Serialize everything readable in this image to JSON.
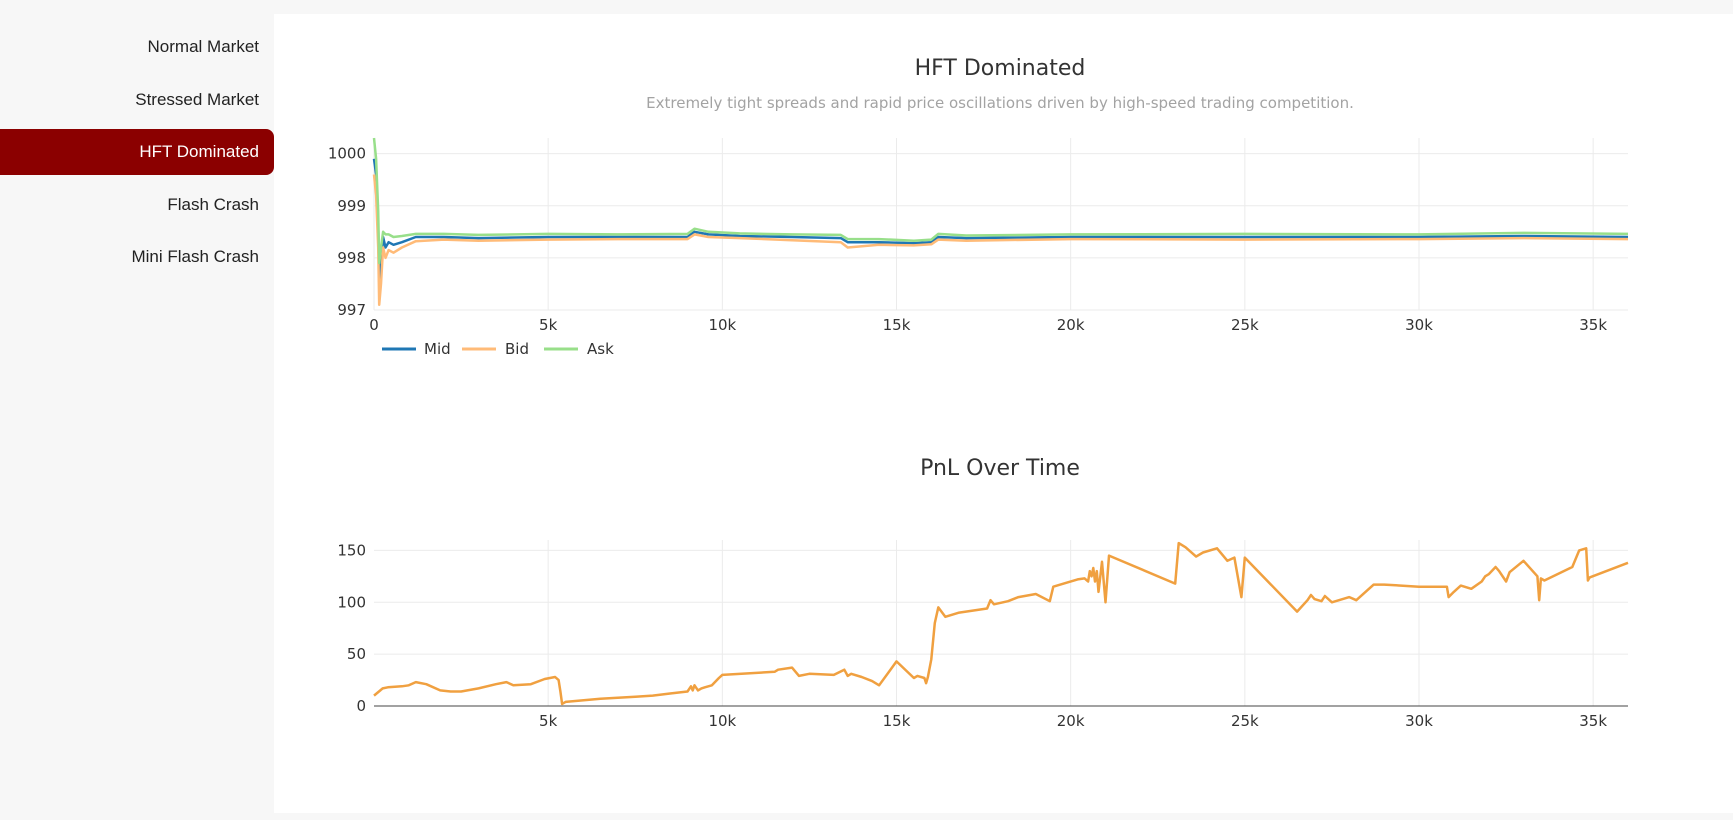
{
  "sidebar": {
    "items": [
      {
        "label": "Normal Market",
        "active": false
      },
      {
        "label": "Stressed Market",
        "active": false
      },
      {
        "label": "HFT Dominated",
        "active": true
      },
      {
        "label": "Flash Crash",
        "active": false
      },
      {
        "label": "Mini Flash Crash",
        "active": false
      }
    ],
    "active_color": "#8b0000"
  },
  "chart_data": [
    {
      "type": "line",
      "title": "HFT Dominated",
      "subtitle": "Extremely tight spreads and rapid price oscillations driven by high-speed trading competition.",
      "xlim": [
        0,
        36000
      ],
      "ylim": [
        997,
        1000.3
      ],
      "x_ticks": [
        0,
        5000,
        10000,
        15000,
        20000,
        25000,
        30000,
        35000
      ],
      "x_tick_labels": [
        "0",
        "5k",
        "10k",
        "15k",
        "20k",
        "25k",
        "30k",
        "35k"
      ],
      "y_ticks": [
        997,
        998,
        999,
        1000
      ],
      "y_tick_labels": [
        "997",
        "998",
        "999",
        "1000"
      ],
      "grid": true,
      "legend": "bottom-left, horizontal",
      "series": [
        {
          "name": "Mid",
          "color": "#1f77b4",
          "x": [
            0,
            60,
            120,
            150,
            200,
            260,
            330,
            420,
            560,
            800,
            1200,
            2000,
            3000,
            5000,
            7000,
            9000,
            9200,
            9600,
            10500,
            12000,
            13400,
            13600,
            14500,
            15500,
            16000,
            16200,
            17000,
            20000,
            25000,
            30000,
            33000,
            36000
          ],
          "y": [
            999.9,
            999.6,
            998.6,
            997.6,
            997.9,
            998.4,
            998.2,
            998.3,
            998.25,
            998.3,
            998.4,
            998.4,
            998.38,
            998.4,
            998.4,
            998.4,
            998.5,
            998.45,
            998.42,
            998.4,
            998.38,
            998.3,
            998.3,
            998.28,
            998.3,
            998.4,
            998.38,
            998.4,
            998.4,
            998.4,
            998.42,
            998.4
          ]
        },
        {
          "name": "Bid",
          "color": "#ffbb78",
          "x": [
            0,
            60,
            120,
            150,
            200,
            260,
            330,
            420,
            560,
            800,
            1200,
            2000,
            3000,
            5000,
            7000,
            9000,
            9200,
            9600,
            10500,
            12000,
            13400,
            13600,
            14500,
            15500,
            16000,
            16200,
            17000,
            20000,
            25000,
            30000,
            33000,
            36000
          ],
          "y": [
            999.6,
            999.2,
            998.2,
            997.1,
            997.5,
            998.2,
            998.0,
            998.15,
            998.1,
            998.2,
            998.32,
            998.35,
            998.33,
            998.35,
            998.36,
            998.36,
            998.45,
            998.4,
            998.38,
            998.34,
            998.3,
            998.2,
            998.25,
            998.24,
            998.26,
            998.35,
            998.33,
            998.36,
            998.35,
            998.36,
            998.38,
            998.36
          ]
        },
        {
          "name": "Ask",
          "color": "#98df8a",
          "x": [
            0,
            60,
            120,
            150,
            200,
            260,
            330,
            420,
            560,
            800,
            1200,
            2000,
            3000,
            5000,
            7000,
            9000,
            9200,
            9600,
            10500,
            12000,
            13400,
            13600,
            14500,
            15500,
            16000,
            16200,
            17000,
            20000,
            25000,
            30000,
            33000,
            36000
          ],
          "y": [
            1000.3,
            999.9,
            998.9,
            997.9,
            998.2,
            998.5,
            998.45,
            998.45,
            998.4,
            998.42,
            998.46,
            998.46,
            998.44,
            998.46,
            998.45,
            998.46,
            998.56,
            998.5,
            998.47,
            998.45,
            998.44,
            998.36,
            998.36,
            998.33,
            998.35,
            998.46,
            998.43,
            998.45,
            998.46,
            998.45,
            998.48,
            998.46
          ]
        }
      ]
    },
    {
      "type": "line",
      "title": "PnL Over Time",
      "xlim": [
        0,
        36000
      ],
      "ylim": [
        0,
        160
      ],
      "x_ticks": [
        5000,
        10000,
        15000,
        20000,
        25000,
        30000,
        35000
      ],
      "x_tick_labels": [
        "5k",
        "10k",
        "15k",
        "20k",
        "25k",
        "30k",
        "35k"
      ],
      "y_ticks": [
        0,
        50,
        100,
        150
      ],
      "y_tick_labels": [
        "0",
        "50",
        "100",
        "150"
      ],
      "grid": true,
      "series": [
        {
          "color": "#f0a040",
          "x": [
            0,
            250,
            400,
            800,
            1000,
            1200,
            1500,
            1900,
            2200,
            2500,
            3000,
            3500,
            3800,
            4000,
            4500,
            4900,
            5200,
            5300,
            5350,
            5400,
            5500,
            6500,
            7000,
            7500,
            8000,
            8500,
            9000,
            9100,
            9150,
            9200,
            9300,
            9400,
            9500,
            9700,
            9900,
            10000,
            11500,
            11600,
            12000,
            12200,
            12500,
            13200,
            13500,
            13600,
            13700,
            14000,
            14300,
            14500,
            15000,
            15500,
            15600,
            15800,
            15850,
            15900,
            16000,
            16100,
            16200,
            16400,
            16800,
            17600,
            17700,
            17800,
            18200,
            18500,
            19000,
            19400,
            19500,
            19800,
            20200,
            20400,
            20500,
            20550,
            20600,
            20650,
            20700,
            20750,
            20800,
            20900,
            21000,
            21100,
            23000,
            23100,
            23300,
            23600,
            23800,
            24200,
            24500,
            24700,
            24900,
            25000,
            26500,
            26800,
            26900,
            27000,
            27200,
            27300,
            27500,
            28000,
            28200,
            28700,
            29000,
            30000,
            30800,
            30850,
            31000,
            31200,
            31500,
            31800,
            31900,
            32000,
            32200,
            32300,
            32500,
            32600,
            33000,
            33400,
            33450,
            33500,
            33600,
            34400,
            34600,
            34800,
            34850,
            34900,
            36000
          ],
          "y": [
            10,
            17,
            18,
            19,
            20,
            23,
            21,
            15,
            14,
            14,
            17,
            21,
            23,
            20,
            21,
            26,
            28,
            25,
            14,
            2,
            4,
            7,
            8,
            9,
            10,
            12,
            14,
            19,
            15,
            20,
            15,
            17,
            18,
            20,
            27,
            30,
            33,
            35,
            37,
            29,
            31,
            30,
            35,
            29,
            31,
            28,
            24,
            20,
            43,
            27,
            29,
            27,
            22,
            28,
            45,
            80,
            95,
            86,
            90,
            94,
            102,
            98,
            101,
            105,
            108,
            101,
            115,
            118,
            122,
            123,
            120,
            130,
            125,
            133,
            120,
            130,
            110,
            139,
            100,
            145,
            118,
            157,
            153,
            144,
            148,
            152,
            140,
            143,
            105,
            143,
            91,
            102,
            107,
            103,
            101,
            106,
            100,
            105,
            102,
            117,
            117,
            115,
            115,
            105,
            110,
            116,
            113,
            120,
            125,
            127,
            134,
            130,
            120,
            129,
            140,
            125,
            102,
            123,
            121,
            134,
            150,
            152,
            121,
            124,
            138
          ]
        }
      ]
    }
  ]
}
